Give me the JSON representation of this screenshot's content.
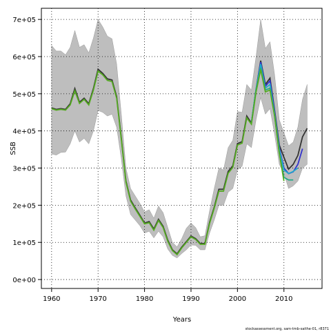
{
  "chart_data": {
    "type": "line",
    "x_label": "Years",
    "y_label": "SSB",
    "footnote": "stockassessment.org, sam-tmb-saithe-01, r8371",
    "xlim": [
      1957.8,
      2018.2
    ],
    "ylim": [
      -24000,
      730000
    ],
    "xticks": [
      1960,
      1970,
      1980,
      1990,
      2000,
      2010
    ],
    "yticks": [
      {
        "value": 0,
        "label": "0e+00"
      },
      {
        "value": 100000,
        "label": "1e+05"
      },
      {
        "value": 200000,
        "label": "2e+05"
      },
      {
        "value": 300000,
        "label": "3e+05"
      },
      {
        "value": 400000,
        "label": "4e+05"
      },
      {
        "value": 500000,
        "label": "5e+05"
      },
      {
        "value": 600000,
        "label": "6e+05"
      },
      {
        "value": 700000,
        "label": "7e+05"
      }
    ],
    "grid": true,
    "band": {
      "color": "#bebebe",
      "x": [
        1960,
        1961,
        1962,
        1963,
        1964,
        1965,
        1966,
        1967,
        1968,
        1969,
        1970,
        1971,
        1972,
        1973,
        1974,
        1975,
        1976,
        1977,
        1978,
        1979,
        1980,
        1981,
        1982,
        1983,
        1984,
        1985,
        1986,
        1987,
        1988,
        1989,
        1990,
        1991,
        1992,
        1993,
        1994,
        1995,
        1996,
        1997,
        1998,
        1999,
        2000,
        2001,
        2002,
        2003,
        2004,
        2005,
        2006,
        2007,
        2008,
        2009,
        2010,
        2011,
        2012,
        2013,
        2014,
        2015
      ],
      "upper": [
        630000,
        615000,
        615000,
        605000,
        625000,
        670000,
        625000,
        632000,
        610000,
        650000,
        700000,
        680000,
        655000,
        648000,
        580000,
        445000,
        300000,
        245000,
        225000,
        205000,
        182000,
        188000,
        165000,
        198000,
        180000,
        140000,
        100000,
        88000,
        110000,
        138000,
        152000,
        140000,
        115000,
        118000,
        185000,
        245000,
        300000,
        295000,
        355000,
        375000,
        452000,
        450000,
        525000,
        510000,
        600000,
        700000,
        622000,
        640000,
        550000,
        430000,
        395000,
        360000,
        370000,
        410000,
        485000,
        525000
      ],
      "lower": [
        338000,
        335000,
        342000,
        343000,
        365000,
        400000,
        370000,
        380000,
        365000,
        400000,
        455000,
        450000,
        440000,
        445000,
        410000,
        325000,
        225000,
        175000,
        160000,
        145000,
        125000,
        130000,
        112000,
        130000,
        115000,
        82000,
        65000,
        58000,
        70000,
        80000,
        93000,
        92000,
        80000,
        80000,
        125000,
        160000,
        200000,
        200000,
        235000,
        245000,
        295000,
        305000,
        365000,
        355000,
        430000,
        490000,
        445000,
        460000,
        390000,
        310000,
        285000,
        245000,
        252000,
        265000,
        300000,
        310000
      ]
    },
    "series": [
      {
        "color": "#333333",
        "x": [
          1960,
          1961,
          1962,
          1963,
          1964,
          1965,
          1966,
          1967,
          1968,
          1969,
          1970,
          1971,
          1972,
          1973,
          1974,
          1975,
          1976,
          1977,
          1978,
          1979,
          1980,
          1981,
          1982,
          1983,
          1984,
          1985,
          1986,
          1987,
          1988,
          1989,
          1990,
          1991,
          1992,
          1993,
          1994,
          1995,
          1996,
          1997,
          1998,
          1999,
          2000,
          2001,
          2002,
          2003,
          2004,
          2005,
          2006,
          2007,
          2008,
          2009,
          2010,
          2011,
          2012,
          2013,
          2014,
          2015
        ],
        "values": [
          462000,
          458000,
          460000,
          458000,
          473000,
          514000,
          477000,
          488000,
          473000,
          514000,
          566000,
          555000,
          540000,
          537000,
          492000,
          381000,
          265000,
          214000,
          193000,
          173000,
          152000,
          156000,
          136000,
          162000,
          143000,
          106000,
          80000,
          69000,
          87000,
          102000,
          117000,
          110000,
          97000,
          97000,
          154000,
          195000,
          243000,
          243000,
          291000,
          306000,
          366000,
          371000,
          440000,
          421000,
          511000,
          589000,
          525000,
          542000,
          455000,
          362000,
          329000,
          297000,
          310000,
          334000,
          384000,
          407000
        ]
      },
      {
        "color": "#3333cc",
        "x": [
          2003,
          2004,
          2005,
          2006,
          2007,
          2008,
          2009,
          2010,
          2011,
          2012,
          2013,
          2014
        ],
        "values": [
          421000,
          511000,
          585000,
          520000,
          535000,
          450000,
          355000,
          300000,
          285000,
          290000,
          310000,
          352000
        ]
      },
      {
        "color": "#22aacc",
        "x": [
          2003,
          2004,
          2005,
          2006,
          2007,
          2008,
          2009,
          2010,
          2011,
          2012,
          2013
        ],
        "values": [
          421000,
          511000,
          580000,
          515000,
          525000,
          445000,
          350000,
          295000,
          285000,
          291000,
          300000
        ]
      },
      {
        "color": "#22aa88",
        "x": [
          2003,
          2004,
          2005,
          2006,
          2007,
          2008,
          2009,
          2010,
          2011,
          2012
        ],
        "values": [
          421000,
          511000,
          570000,
          510000,
          515000,
          440000,
          340000,
          275000,
          268000,
          268000
        ]
      },
      {
        "color": "#55aa22",
        "x": [
          1960,
          1961,
          1962,
          1963,
          1964,
          1965,
          1966,
          1967,
          1968,
          1969,
          1970,
          1971,
          1972,
          1973,
          1974,
          1975,
          1976,
          1977,
          1978,
          1979,
          1980,
          1981,
          1982,
          1983,
          1984,
          1985,
          1986,
          1987,
          1988,
          1989,
          1990,
          1991,
          1992,
          1993,
          1994,
          1995,
          1996,
          1997,
          1998,
          1999,
          2000,
          2001,
          2002,
          2003,
          2004,
          2005,
          2006,
          2007,
          2008,
          2009,
          2010
        ],
        "values": [
          460000,
          456000,
          458000,
          456000,
          470000,
          508000,
          474000,
          485000,
          470000,
          510000,
          561000,
          551000,
          536000,
          533000,
          488000,
          378000,
          262000,
          211000,
          190000,
          170000,
          150000,
          153000,
          133000,
          159000,
          140000,
          103000,
          78000,
          67000,
          85000,
          100000,
          115000,
          108000,
          95000,
          95000,
          151000,
          192000,
          238000,
          238000,
          286000,
          302000,
          362000,
          367000,
          435000,
          418000,
          505000,
          565000,
          505000,
          510000,
          440000,
          340000,
          265000
        ]
      }
    ]
  }
}
